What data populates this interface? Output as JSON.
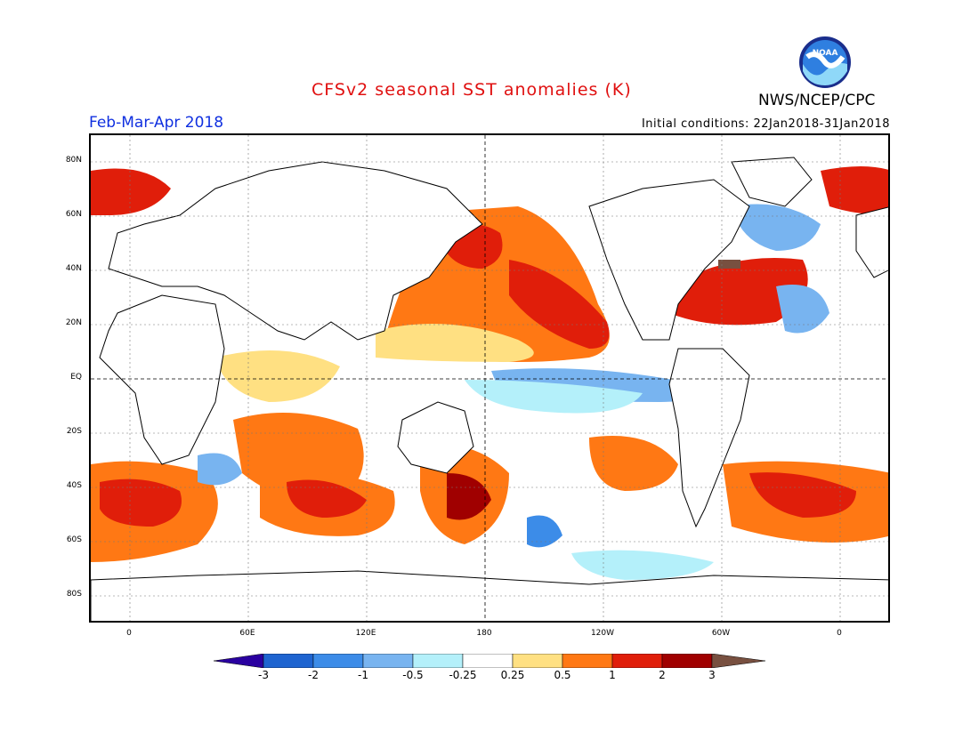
{
  "header": {
    "title": "CFSv2 seasonal SST anomalies (K)",
    "organization": "NWS/NCEP/CPC",
    "period": "Feb-Mar-Apr 2018",
    "initial_conditions": "Initial conditions: 22Jan2018-31Jan2018",
    "logo_icon": "noaa-logo-icon",
    "logo_text": "NOAA"
  },
  "map": {
    "lat_labels": [
      "80N",
      "60N",
      "40N",
      "20N",
      "EQ",
      "20S",
      "40S",
      "60S",
      "80S"
    ],
    "lon_labels": [
      "0",
      "60E",
      "120E",
      "180",
      "120W",
      "60W",
      "0"
    ]
  },
  "legend": {
    "labels": [
      "-3",
      "-2",
      "-1",
      "-0.5",
      "-0.25",
      "0.25",
      "0.5",
      "1",
      "2",
      "3"
    ],
    "colors": [
      "#2a00a0",
      "#1e64d0",
      "#3c8ce8",
      "#78b4f0",
      "#b4f0fa",
      "#ffffff",
      "#ffe082",
      "#ff7814",
      "#e01e0a",
      "#a00000",
      "#785040"
    ]
  }
}
